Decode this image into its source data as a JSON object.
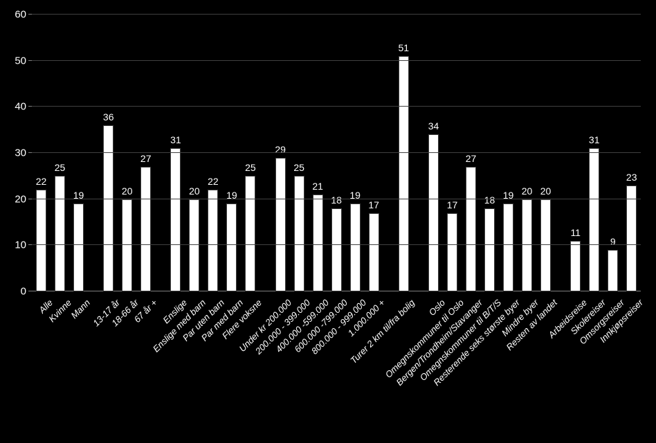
{
  "chart": {
    "type": "bar",
    "background_color": "#000000",
    "bar_color": "#ffffff",
    "bar_border_color": "#404040",
    "grid_color": "#404040",
    "text_color": "#ffffff",
    "label_fontsize": 13,
    "value_fontsize": 14,
    "axis_fontsize": 15,
    "bar_width": 0.55,
    "ylim": [
      0,
      60
    ],
    "ytick_step": 10,
    "yticks": [
      0,
      10,
      20,
      30,
      40,
      50,
      60
    ],
    "groups": [
      {
        "bars": [
          {
            "label": "Alle",
            "value": 22
          },
          {
            "label": "Kvinne",
            "value": 25
          },
          {
            "label": "Mann",
            "value": 19
          }
        ]
      },
      {
        "bars": [
          {
            "label": "13-17 år",
            "value": 36
          },
          {
            "label": "18-66 år",
            "value": 20
          },
          {
            "label": "67 år +",
            "value": 27
          }
        ]
      },
      {
        "bars": [
          {
            "label": "Enslige",
            "value": 31
          },
          {
            "label": "Enslige med barn",
            "value": 20
          },
          {
            "label": "Par uten barn",
            "value": 22
          },
          {
            "label": "Par med barn",
            "value": 19
          },
          {
            "label": "Flere voksne",
            "value": 25
          }
        ]
      },
      {
        "bars": [
          {
            "label": "Under kr 200.000",
            "value": 29
          },
          {
            "label": "200.000 - 399.000",
            "value": 25
          },
          {
            "label": "400.000 -599.000",
            "value": 21
          },
          {
            "label": "600.000 -799.000",
            "value": 18
          },
          {
            "label": "800.000 - 999.000",
            "value": 19
          },
          {
            "label": "1.000.000 +",
            "value": 17
          }
        ]
      },
      {
        "bars": [
          {
            "label": "Turer 2 km til/fra bolig",
            "value": 51
          }
        ]
      },
      {
        "bars": [
          {
            "label": "Oslo",
            "value": 34
          },
          {
            "label": "Omegnskommuner til Oslo",
            "value": 17
          },
          {
            "label": "Bergen/Trondheim/Stavanger",
            "value": 27
          },
          {
            "label": "Omegnskommuner til B/T/S",
            "value": 18
          },
          {
            "label": "Resterende seks største byer",
            "value": 19
          },
          {
            "label": "Mindre byer",
            "value": 20
          },
          {
            "label": "Resten av landet",
            "value": 20
          }
        ]
      },
      {
        "bars": [
          {
            "label": "Arbeidsreise",
            "value": 11
          },
          {
            "label": "Skolereiser",
            "value": 31
          },
          {
            "label": "Omsorgsreiser",
            "value": 9
          },
          {
            "label": "Innkjøpsreiser",
            "value": 23
          }
        ]
      }
    ]
  }
}
